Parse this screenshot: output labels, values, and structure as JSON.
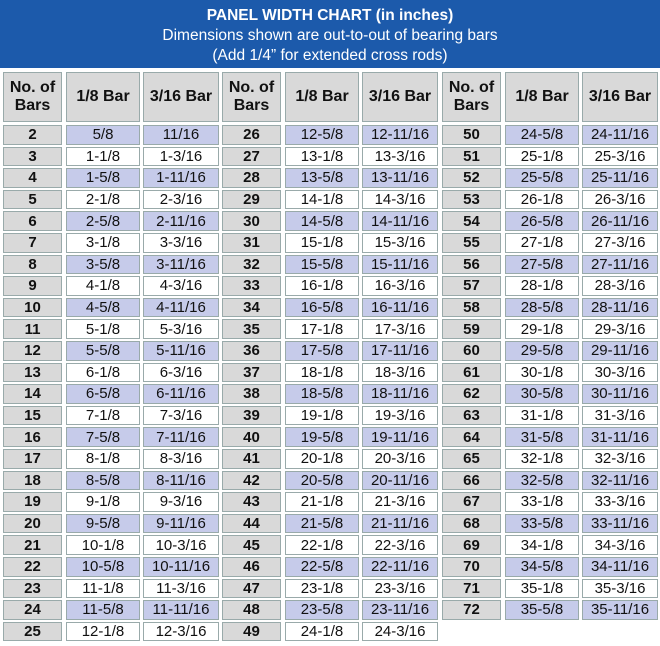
{
  "header": {
    "title": "PANEL WIDTH CHART (in inches)",
    "lines": [
      "Dimensions shown are out-to-out of bearing bars",
      "(Add 1/4” for extended cross rods)"
    ]
  },
  "table": {
    "columns": [
      "No. of Bars",
      "1/8 Bar",
      "3/16 Bar",
      "No. of Bars",
      "1/8 Bar",
      "3/16 Bar",
      "No. of Bars",
      "1/8 Bar",
      "3/16 Bar"
    ],
    "groups": [
      [
        [
          2,
          "5/8",
          "11/16"
        ],
        [
          3,
          "1-1/8",
          "1-3/16"
        ],
        [
          4,
          "1-5/8",
          "1-11/16"
        ],
        [
          5,
          "2-1/8",
          "2-3/16"
        ],
        [
          6,
          "2-5/8",
          "2-11/16"
        ],
        [
          7,
          "3-1/8",
          "3-3/16"
        ],
        [
          8,
          "3-5/8",
          "3-11/16"
        ],
        [
          9,
          "4-1/8",
          "4-3/16"
        ],
        [
          10,
          "4-5/8",
          "4-11/16"
        ],
        [
          11,
          "5-1/8",
          "5-3/16"
        ],
        [
          12,
          "5-5/8",
          "5-11/16"
        ],
        [
          13,
          "6-1/8",
          "6-3/16"
        ],
        [
          14,
          "6-5/8",
          "6-11/16"
        ],
        [
          15,
          "7-1/8",
          "7-3/16"
        ],
        [
          16,
          "7-5/8",
          "7-11/16"
        ],
        [
          17,
          "8-1/8",
          "8-3/16"
        ],
        [
          18,
          "8-5/8",
          "8-11/16"
        ],
        [
          19,
          "9-1/8",
          "9-3/16"
        ],
        [
          20,
          "9-5/8",
          "9-11/16"
        ],
        [
          21,
          "10-1/8",
          "10-3/16"
        ],
        [
          22,
          "10-5/8",
          "10-11/16"
        ],
        [
          23,
          "11-1/8",
          "11-3/16"
        ],
        [
          24,
          "11-5/8",
          "11-11/16"
        ],
        [
          25,
          "12-1/8",
          "12-3/16"
        ]
      ],
      [
        [
          26,
          "12-5/8",
          "12-11/16"
        ],
        [
          27,
          "13-1/8",
          "13-3/16"
        ],
        [
          28,
          "13-5/8",
          "13-11/16"
        ],
        [
          29,
          "14-1/8",
          "14-3/16"
        ],
        [
          30,
          "14-5/8",
          "14-11/16"
        ],
        [
          31,
          "15-1/8",
          "15-3/16"
        ],
        [
          32,
          "15-5/8",
          "15-11/16"
        ],
        [
          33,
          "16-1/8",
          "16-3/16"
        ],
        [
          34,
          "16-5/8",
          "16-11/16"
        ],
        [
          35,
          "17-1/8",
          "17-3/16"
        ],
        [
          36,
          "17-5/8",
          "17-11/16"
        ],
        [
          37,
          "18-1/8",
          "18-3/16"
        ],
        [
          38,
          "18-5/8",
          "18-11/16"
        ],
        [
          39,
          "19-1/8",
          "19-3/16"
        ],
        [
          40,
          "19-5/8",
          "19-11/16"
        ],
        [
          41,
          "20-1/8",
          "20-3/16"
        ],
        [
          42,
          "20-5/8",
          "20-11/16"
        ],
        [
          43,
          "21-1/8",
          "21-3/16"
        ],
        [
          44,
          "21-5/8",
          "21-11/16"
        ],
        [
          45,
          "22-1/8",
          "22-3/16"
        ],
        [
          46,
          "22-5/8",
          "22-11/16"
        ],
        [
          47,
          "23-1/8",
          "23-3/16"
        ],
        [
          48,
          "23-5/8",
          "23-11/16"
        ],
        [
          49,
          "24-1/8",
          "24-3/16"
        ]
      ],
      [
        [
          50,
          "24-5/8",
          "24-11/16"
        ],
        [
          51,
          "25-1/8",
          "25-3/16"
        ],
        [
          52,
          "25-5/8",
          "25-11/16"
        ],
        [
          53,
          "26-1/8",
          "26-3/16"
        ],
        [
          54,
          "26-5/8",
          "26-11/16"
        ],
        [
          55,
          "27-1/8",
          "27-3/16"
        ],
        [
          56,
          "27-5/8",
          "27-11/16"
        ],
        [
          57,
          "28-1/8",
          "28-3/16"
        ],
        [
          58,
          "28-5/8",
          "28-11/16"
        ],
        [
          59,
          "29-1/8",
          "29-3/16"
        ],
        [
          60,
          "29-5/8",
          "29-11/16"
        ],
        [
          61,
          "30-1/8",
          "30-3/16"
        ],
        [
          62,
          "30-5/8",
          "30-11/16"
        ],
        [
          63,
          "31-1/8",
          "31-3/16"
        ],
        [
          64,
          "31-5/8",
          "31-11/16"
        ],
        [
          65,
          "32-1/8",
          "32-3/16"
        ],
        [
          66,
          "32-5/8",
          "32-11/16"
        ],
        [
          67,
          "33-1/8",
          "33-3/16"
        ],
        [
          68,
          "33-5/8",
          "33-11/16"
        ],
        [
          69,
          "34-1/8",
          "34-3/16"
        ],
        [
          70,
          "34-5/8",
          "34-11/16"
        ],
        [
          71,
          "35-1/8",
          "35-3/16"
        ],
        [
          72,
          "35-5/8",
          "35-11/16"
        ]
      ]
    ]
  }
}
